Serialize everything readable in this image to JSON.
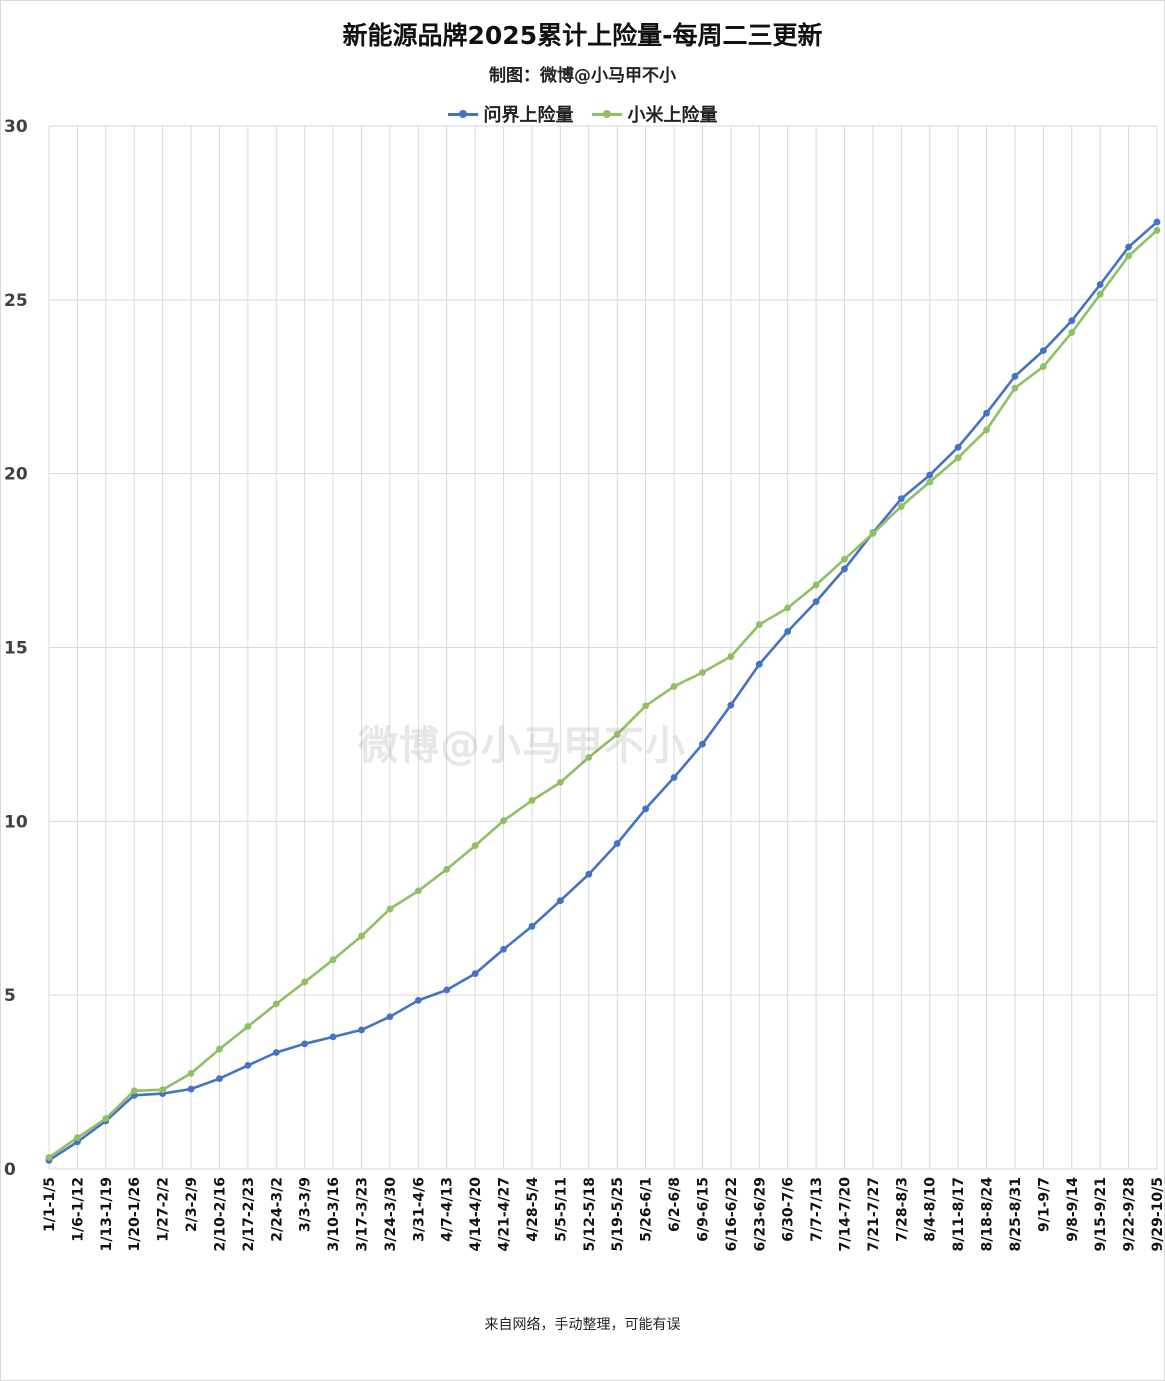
{
  "header": {
    "title": "新能源品牌2025累计上险量-每周二三更新",
    "subtitle": "制图：微博@小马甲不小"
  },
  "watermark": "微博@小马甲不小",
  "footer": "来自网络，手动整理，可能有误",
  "colors": {
    "wenjie": "#4472C4",
    "xiaomi": "#8DC162",
    "grid": "#d9d9d9",
    "axis_text": "#404040"
  },
  "chart_data": {
    "type": "line",
    "title": "新能源品牌2025累计上险量-每周二三更新",
    "xlabel": "",
    "ylabel": "",
    "ylim": [
      0,
      30
    ],
    "yticks": [
      "0",
      "5",
      "10",
      "15",
      "20",
      "25",
      "30"
    ],
    "grid": true,
    "legend_position": "top-center",
    "categories": [
      "1/1-1/5",
      "1/6-1/12",
      "1/13-1/19",
      "1/20-1/26",
      "1/27-2/2",
      "2/3-2/9",
      "2/10-2/16",
      "2/17-2/23",
      "2/24-3/2",
      "3/3-3/9",
      "3/10-3/16",
      "3/17-3/23",
      "3/24-3/30",
      "3/31-4/6",
      "4/7-4/13",
      "4/14-4/20",
      "4/21-4/27",
      "4/28-5/4",
      "5/5-5/11",
      "5/12-5/18",
      "5/19-5/25",
      "5/26-6/1",
      "6/2-6/8",
      "6/9-6/15",
      "6/16-6/22",
      "6/23-6/29",
      "6/30-7/6",
      "7/7-7/13",
      "7/14-7/20",
      "7/21-7/27",
      "7/28-8/3",
      "8/4-8/10",
      "8/11-8/17",
      "8/18-8/24",
      "8/25-8/31",
      "9/1-9/7",
      "9/8-9/14",
      "9/15-9/21",
      "9/22-9/28",
      "9/29-10/5"
    ],
    "series": [
      {
        "name": "问界上险量",
        "color": "#4472C4",
        "values": [
          0.25,
          0.78,
          1.38,
          2.12,
          2.17,
          2.3,
          2.6,
          2.98,
          3.35,
          3.6,
          3.8,
          4.0,
          4.38,
          4.85,
          5.15,
          5.62,
          6.32,
          6.98,
          7.72,
          8.48,
          9.36,
          10.36,
          11.26,
          12.22,
          13.34,
          14.52,
          15.46,
          16.32,
          17.26,
          18.3,
          19.28,
          19.96,
          20.76,
          21.74,
          22.8,
          23.54,
          24.4,
          25.44,
          26.52,
          27.24
        ]
      },
      {
        "name": "小米上险量",
        "color": "#8DC162",
        "values": [
          0.33,
          0.9,
          1.45,
          2.25,
          2.28,
          2.75,
          3.45,
          4.1,
          4.75,
          5.38,
          6.02,
          6.7,
          7.48,
          8.0,
          8.62,
          9.3,
          10.02,
          10.6,
          11.12,
          11.84,
          12.5,
          13.32,
          13.88,
          14.28,
          14.74,
          15.66,
          16.14,
          16.8,
          17.54,
          18.28,
          19.06,
          19.76,
          20.46,
          21.26,
          22.46,
          23.08,
          24.06,
          25.16,
          26.26,
          27.0
        ]
      }
    ]
  }
}
